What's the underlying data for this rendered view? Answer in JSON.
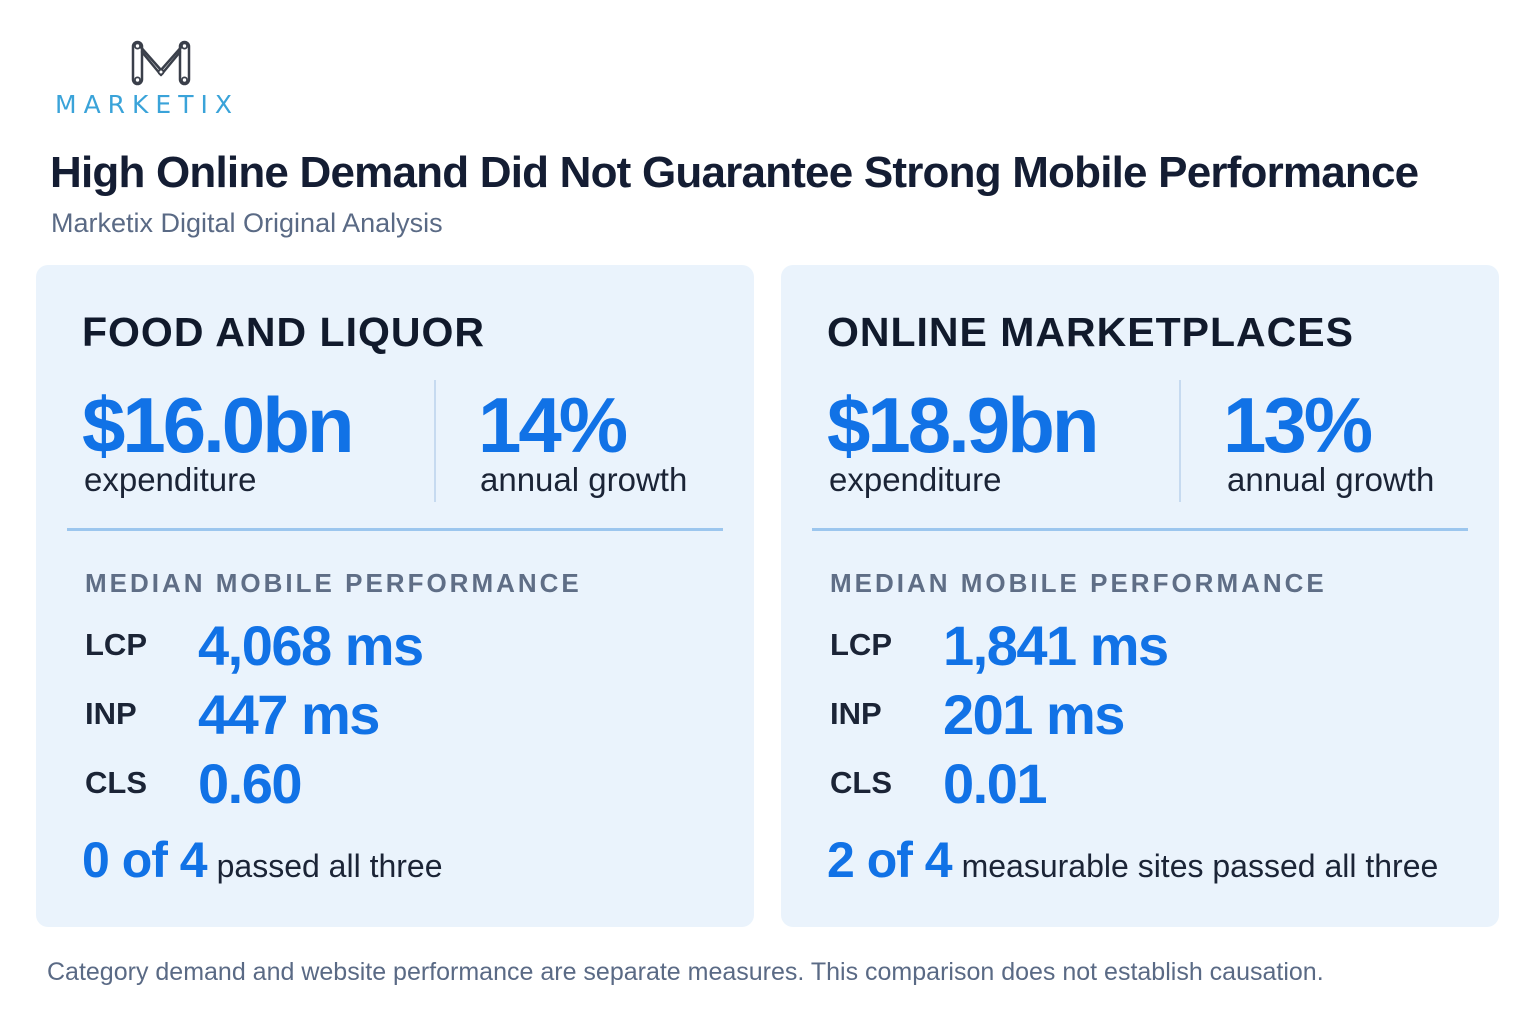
{
  "brand": {
    "name": "MARKETIX",
    "accent": "#3aa3d9"
  },
  "header": {
    "title": "High Online Demand Did Not Guarantee Strong Mobile Performance",
    "subtitle": "Marketix Digital Original Analysis"
  },
  "cards": [
    {
      "title": "FOOD AND LIQUOR",
      "expenditure_value": "$16.0bn",
      "expenditure_label": "expenditure",
      "growth_value": "14%",
      "growth_label": "annual growth",
      "section_label": "MEDIAN MOBILE PERFORMANCE",
      "metrics": [
        {
          "name": "LCP",
          "value": "4,068 ms"
        },
        {
          "name": "INP",
          "value": "447 ms"
        },
        {
          "name": "CLS",
          "value": "0.60"
        }
      ],
      "pass_count": "0 of 4",
      "pass_text": "passed all three"
    },
    {
      "title": "ONLINE MARKETPLACES",
      "expenditure_value": "$18.9bn",
      "expenditure_label": "expenditure",
      "growth_value": "13%",
      "growth_label": "annual growth",
      "section_label": "MEDIAN MOBILE PERFORMANCE",
      "metrics": [
        {
          "name": "LCP",
          "value": "1,841 ms"
        },
        {
          "name": "INP",
          "value": "201 ms"
        },
        {
          "name": "CLS",
          "value": "0.01"
        }
      ],
      "pass_count": "2 of 4",
      "pass_text": "measurable sites passed all three"
    }
  ],
  "footnote": "Category demand and website performance are separate measures. This comparison does not establish causation.",
  "colors": {
    "value_blue": "#1172e6",
    "card_background": "#eaf3fc",
    "title_dark": "#141d33"
  }
}
